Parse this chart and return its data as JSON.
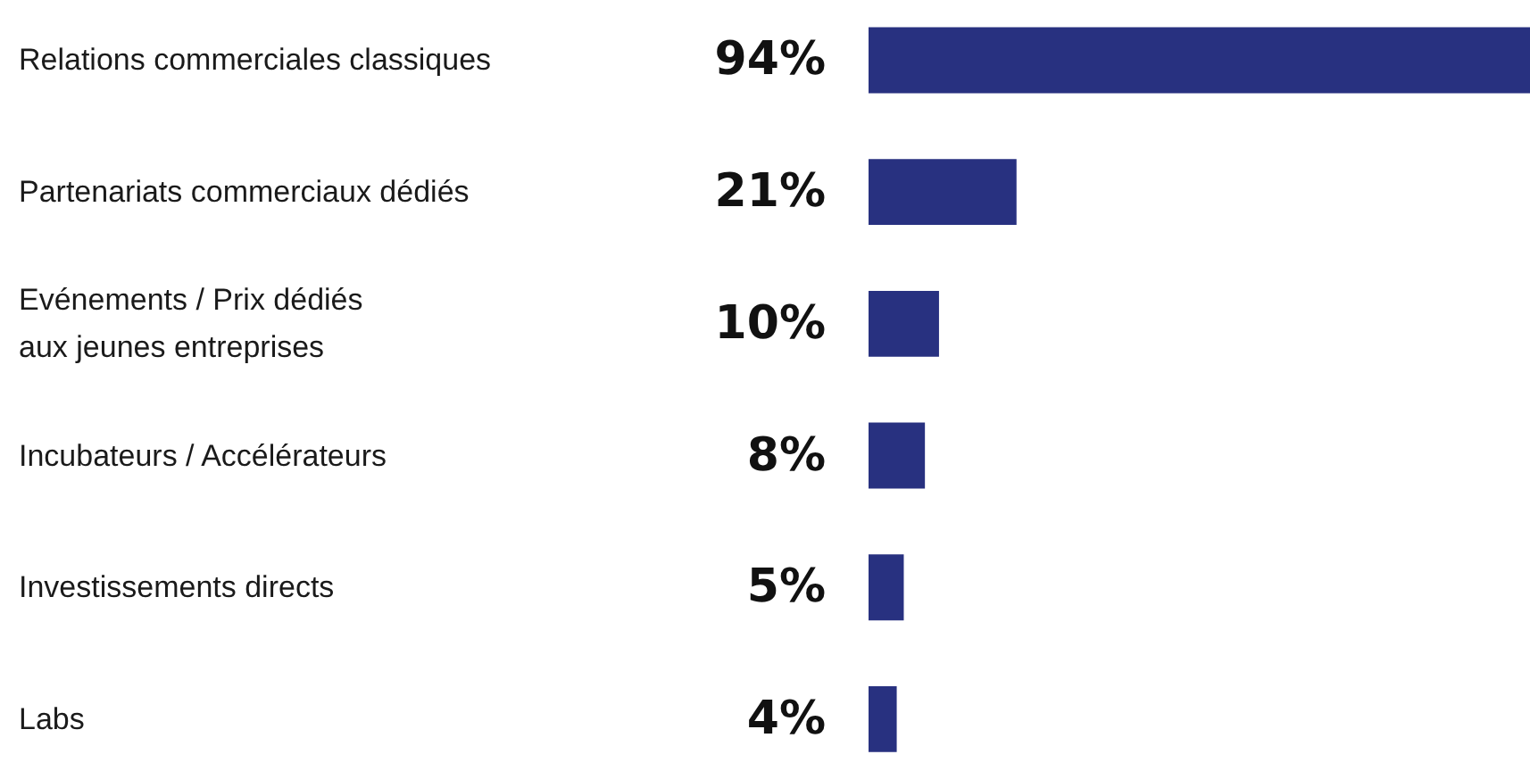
{
  "chart_data": {
    "type": "bar",
    "orientation": "horizontal",
    "categories": [
      "Relations commerciales classiques",
      "Partenariats commerciaux dédiés",
      "Evénements / Prix dédiés\naux jeunes entreprises",
      "Incubateurs / Accélérateurs",
      "Investissements directs",
      "Labs"
    ],
    "values": [
      94,
      21,
      10,
      8,
      5,
      4
    ],
    "value_labels": [
      "94%",
      "21%",
      "10%",
      "8%",
      "5%",
      "4%"
    ],
    "color": "#283180"
  }
}
